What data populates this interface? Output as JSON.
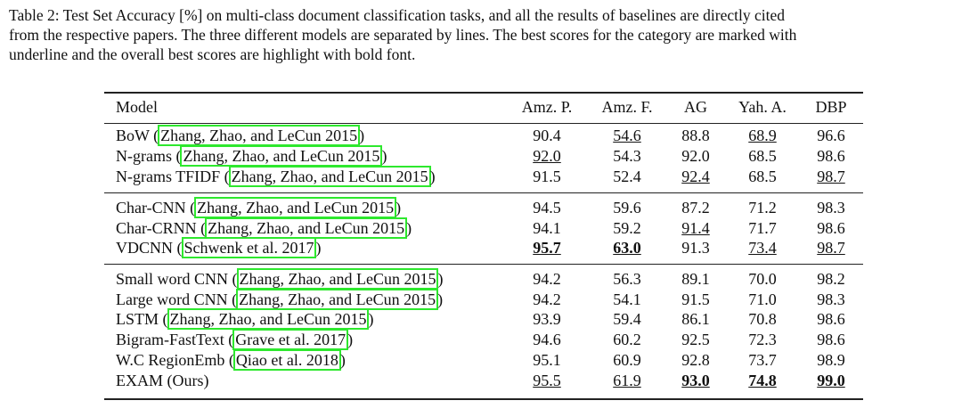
{
  "caption": {
    "lines": [
      "Table 2: Test Set Accuracy [%] on multi-class document classification tasks, and all the results of baselines are directly cited",
      "from the respective papers. The three different models are separated by lines. The best scores for the category are marked with",
      "underline and the overall best scores are highlight with bold font."
    ]
  },
  "table": {
    "header": [
      "Model",
      "Amz. P.",
      "Amz. F.",
      "AG",
      "Yah. A.",
      "DBP"
    ],
    "groups": [
      {
        "rows": [
          {
            "model": {
              "prefix": "BoW (",
              "cite": "Zhang, Zhao, and LeCun 2015",
              "suffix": ")"
            },
            "cells": [
              {
                "text": "90.4"
              },
              {
                "text": "54.6",
                "underline": true
              },
              {
                "text": "88.8"
              },
              {
                "text": "68.9",
                "underline": true
              },
              {
                "text": "96.6"
              }
            ]
          },
          {
            "model": {
              "prefix": "N-grams (",
              "cite": "Zhang, Zhao, and LeCun 2015",
              "suffix": ")"
            },
            "cells": [
              {
                "text": "92.0",
                "underline": true
              },
              {
                "text": "54.3"
              },
              {
                "text": "92.0"
              },
              {
                "text": "68.5"
              },
              {
                "text": "98.6"
              }
            ]
          },
          {
            "model": {
              "prefix": "N-grams TFIDF (",
              "cite": "Zhang, Zhao, and LeCun 2015",
              "suffix": ")"
            },
            "cells": [
              {
                "text": "91.5"
              },
              {
                "text": "52.4"
              },
              {
                "text": "92.4",
                "underline": true
              },
              {
                "text": "68.5"
              },
              {
                "text": "98.7",
                "underline": true
              }
            ]
          }
        ]
      },
      {
        "rows": [
          {
            "model": {
              "prefix": "Char-CNN (",
              "cite": "Zhang, Zhao, and LeCun 2015",
              "suffix": ")"
            },
            "cells": [
              {
                "text": "94.5"
              },
              {
                "text": "59.6"
              },
              {
                "text": "87.2"
              },
              {
                "text": "71.2"
              },
              {
                "text": "98.3"
              }
            ]
          },
          {
            "model": {
              "prefix": "Char-CRNN (",
              "cite": "Zhang, Zhao, and LeCun 2015",
              "suffix": ")"
            },
            "cells": [
              {
                "text": "94.1"
              },
              {
                "text": "59.2"
              },
              {
                "text": "91.4",
                "underline": true
              },
              {
                "text": "71.7"
              },
              {
                "text": "98.6"
              }
            ]
          },
          {
            "model": {
              "prefix": "VDCNN (",
              "cite": "Schwenk et al. 2017",
              "suffix": ")"
            },
            "cells": [
              {
                "text": "95.7",
                "underline": true,
                "bold": true
              },
              {
                "text": "63.0",
                "underline": true,
                "bold": true
              },
              {
                "text": "91.3"
              },
              {
                "text": "73.4",
                "underline": true
              },
              {
                "text": "98.7",
                "underline": true
              }
            ]
          }
        ]
      },
      {
        "rows": [
          {
            "model": {
              "prefix": "Small word CNN (",
              "cite": "Zhang, Zhao, and LeCun 2015",
              "suffix": ")"
            },
            "cells": [
              {
                "text": "94.2"
              },
              {
                "text": "56.3"
              },
              {
                "text": "89.1"
              },
              {
                "text": "70.0"
              },
              {
                "text": "98.2"
              }
            ]
          },
          {
            "model": {
              "prefix": "Large word CNN (",
              "cite": "Zhang, Zhao, and LeCun 2015",
              "suffix": ")"
            },
            "cells": [
              {
                "text": "94.2"
              },
              {
                "text": "54.1"
              },
              {
                "text": "91.5"
              },
              {
                "text": "71.0"
              },
              {
                "text": "98.3"
              }
            ]
          },
          {
            "model": {
              "prefix": "LSTM (",
              "cite": "Zhang, Zhao, and LeCun 2015",
              "suffix": ")"
            },
            "cells": [
              {
                "text": "93.9"
              },
              {
                "text": "59.4"
              },
              {
                "text": "86.1"
              },
              {
                "text": "70.8"
              },
              {
                "text": "98.6"
              }
            ]
          },
          {
            "model": {
              "prefix": "Bigram-FastText (",
              "cite": "Grave et al. 2017",
              "suffix": ")"
            },
            "cells": [
              {
                "text": "94.6"
              },
              {
                "text": "60.2"
              },
              {
                "text": "92.5"
              },
              {
                "text": "72.3"
              },
              {
                "text": "98.6"
              }
            ]
          },
          {
            "model": {
              "prefix": "W.C RegionEmb (",
              "cite": "Qiao et al. 2018",
              "suffix": ")"
            },
            "cells": [
              {
                "text": "95.1"
              },
              {
                "text": "60.9"
              },
              {
                "text": "92.8"
              },
              {
                "text": "73.7"
              },
              {
                "text": "98.9"
              }
            ]
          },
          {
            "model": {
              "prefix": "EXAM (Ours)"
            },
            "cells": [
              {
                "text": "95.5",
                "underline": true
              },
              {
                "text": "61.9",
                "underline": true
              },
              {
                "text": "93.0",
                "underline": true,
                "bold": true
              },
              {
                "text": "74.8",
                "underline": true,
                "bold": true
              },
              {
                "text": "99.0",
                "underline": true,
                "bold": true
              }
            ]
          }
        ]
      }
    ]
  }
}
